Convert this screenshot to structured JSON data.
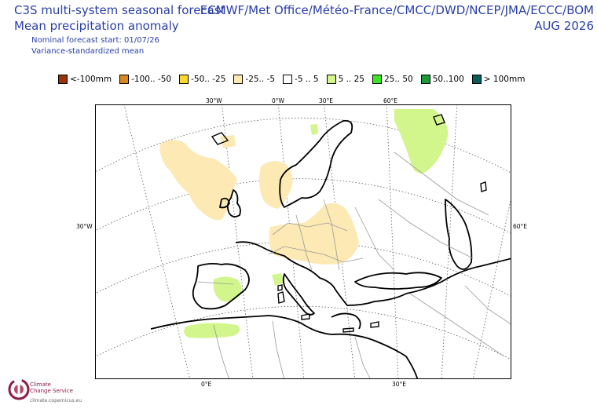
{
  "header": {
    "title": "C3S multi-system seasonal forecast",
    "subtitle": "Mean precipitation anomaly",
    "start": "Nominal forecast start: 01/07/26",
    "note": "Variance-standardized mean",
    "systems": "ECMWF/Met Office/Météo-France/CMCC/DWD/NCEP/JMA/ECCC/BOM",
    "month": "AUG 2026"
  },
  "legend": [
    {
      "label": "<-100mm",
      "color": "#993404"
    },
    {
      "label": "-100.. -50",
      "color": "#d9891f"
    },
    {
      "label": "-50.. -25",
      "color": "#ffd92f"
    },
    {
      "label": "-25.. -5",
      "color": "#fde9b3"
    },
    {
      "label": "-5 .. 5",
      "color": "#ffffff"
    },
    {
      "label": "5 .. 25",
      "color": "#d2f58c"
    },
    {
      "label": "25.. 50",
      "color": "#39e61f"
    },
    {
      "label": "50..100",
      "color": "#1a9b3a"
    },
    {
      "label": "> 100mm",
      "color": "#0b5c5c"
    }
  ],
  "map": {
    "grid_labels": {
      "top_30w": "30°W",
      "top_0": "0°W",
      "top_30e": "30°E",
      "top_60e": "60°E",
      "left_30w": "30°W",
      "right_60e": "60°E",
      "bottom_0": "0°E",
      "bottom_30e": "30°E"
    },
    "colors": {
      "dry_light": "#fde9b3",
      "wet_light": "#d2f58c",
      "wet_mid": "#39e61f"
    }
  },
  "logo": {
    "line1": "Climate",
    "line2": "Change Service",
    "url": "climate.copernicus.eu"
  }
}
